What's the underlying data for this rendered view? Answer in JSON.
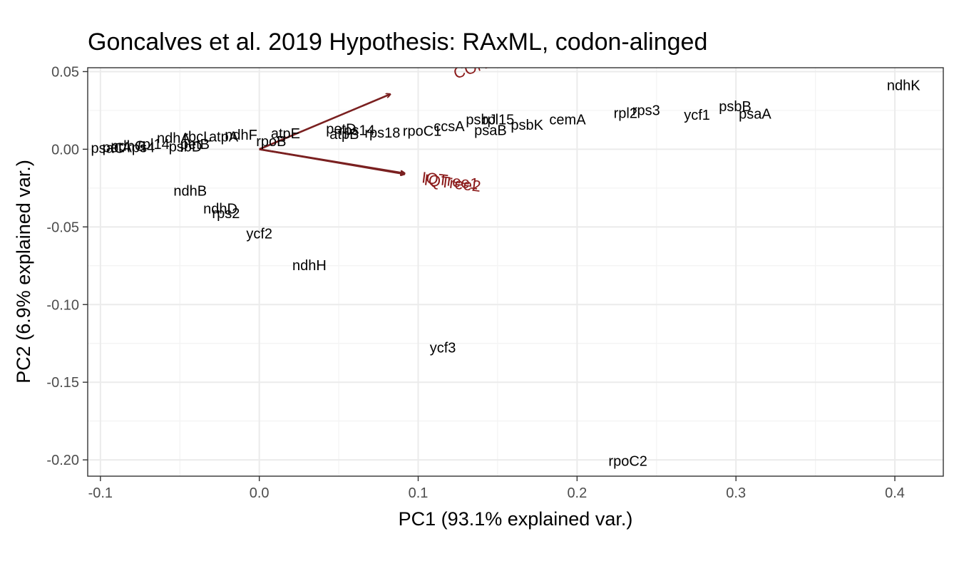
{
  "chart_data": {
    "type": "scatter",
    "subtype": "pca-biplot",
    "title": "Goncalves et al. 2019 Hypothesis: RAxML,  codon-alinged",
    "xlabel": "PC1 (93.1% explained var.)",
    "ylabel": "PC2 (6.9% explained var.)",
    "xlim": [
      -0.108,
      0.4305
    ],
    "ylim": [
      -0.2105,
      0.0525
    ],
    "x_ticks": [
      -0.1,
      0.0,
      0.1,
      0.2,
      0.3,
      0.4
    ],
    "x_tick_labels": [
      "-0.1",
      "0.0",
      "0.1",
      "0.2",
      "0.3",
      "0.4"
    ],
    "y_ticks": [
      0.05,
      0.0,
      -0.05,
      -0.1,
      -0.15,
      -0.2
    ],
    "y_tick_labels": [
      "0.05",
      "0.00",
      "-0.05",
      "-0.10",
      "-0.15",
      "-0.20"
    ],
    "grid": true,
    "legend": "none",
    "point_color": "#000000",
    "arrow_color": "#8b1a1a",
    "points": [
      {
        "label": "ndhK",
        "x": 0.4055,
        "y": 0.0405
      },
      {
        "label": "psbB",
        "x": 0.2995,
        "y": 0.027
      },
      {
        "label": "psaA",
        "x": 0.312,
        "y": 0.022
      },
      {
        "label": "ycf1",
        "x": 0.2755,
        "y": 0.0215
      },
      {
        "label": "rps3",
        "x": 0.2435,
        "y": 0.0245
      },
      {
        "label": "rpl2",
        "x": 0.2305,
        "y": 0.0225
      },
      {
        "label": "cemA",
        "x": 0.194,
        "y": 0.0185
      },
      {
        "label": "psbK",
        "x": 0.1685,
        "y": 0.015
      },
      {
        "label": "rpl15",
        "x": 0.1505,
        "y": 0.0185
      },
      {
        "label": "psbJ",
        "x": 0.1395,
        "y": 0.0185
      },
      {
        "label": "psaB",
        "x": 0.1455,
        "y": 0.0115
      },
      {
        "label": "ccsA",
        "x": 0.1195,
        "y": 0.014
      },
      {
        "label": "rpoC1",
        "x": 0.1025,
        "y": 0.011
      },
      {
        "label": "rps18",
        "x": 0.0775,
        "y": 0.01
      },
      {
        "label": "rps14",
        "x": 0.0615,
        "y": 0.0115
      },
      {
        "label": "petD",
        "x": 0.0515,
        "y": 0.0125
      },
      {
        "label": "atpB",
        "x": 0.0535,
        "y": 0.009
      },
      {
        "label": "atpE",
        "x": 0.0165,
        "y": 0.0095
      },
      {
        "label": "rpoB",
        "x": 0.0075,
        "y": 0.0045
      },
      {
        "label": "ndhF",
        "x": -0.0115,
        "y": 0.0085
      },
      {
        "label": "atpA",
        "x": -0.0225,
        "y": 0.0075
      },
      {
        "label": "rbcL",
        "x": -0.039,
        "y": 0.0075
      },
      {
        "label": "ndhA",
        "x": -0.054,
        "y": 0.0065
      },
      {
        "label": "petB",
        "x": -0.0405,
        "y": 0.0025
      },
      {
        "label": "rpl14",
        "x": -0.0665,
        "y": 0.0025
      },
      {
        "label": "ndhG",
        "x": -0.0825,
        "y": 0.0015
      },
      {
        "label": "psbD",
        "x": -0.0465,
        "y": 0.001
      },
      {
        "label": "petA",
        "x": -0.0895,
        "y": 0.0005
      },
      {
        "label": "psaC",
        "x": -0.0955,
        "y": 0.0
      },
      {
        "label": "rps4",
        "x": -0.0745,
        "y": 0.0005
      },
      {
        "label": "ndhB",
        "x": -0.0435,
        "y": -0.0275
      },
      {
        "label": "ndhD",
        "x": -0.0245,
        "y": -0.039
      },
      {
        "label": "rps2",
        "x": -0.021,
        "y": -0.042
      },
      {
        "label": "ycf2",
        "x": 0.0,
        "y": -0.055
      },
      {
        "label": "ndhH",
        "x": 0.0315,
        "y": -0.0755
      },
      {
        "label": "ycf3",
        "x": 0.1155,
        "y": -0.1285
      },
      {
        "label": "rpoC2",
        "x": 0.232,
        "y": -0.2015
      }
    ],
    "arrows": [
      {
        "label": "CONSEL",
        "x": 0.0825,
        "y": 0.0355,
        "label_x": 0.142,
        "label_y": 0.0545,
        "angle": -19
      },
      {
        "label": "IQTree1",
        "x": 0.0915,
        "y": -0.0155,
        "label_x": 0.12,
        "label_y": -0.021,
        "angle": 7
      },
      {
        "label": "IQTree2",
        "x": 0.0915,
        "y": -0.016,
        "label_x": 0.1215,
        "label_y": -0.0225,
        "angle": 7
      }
    ]
  }
}
